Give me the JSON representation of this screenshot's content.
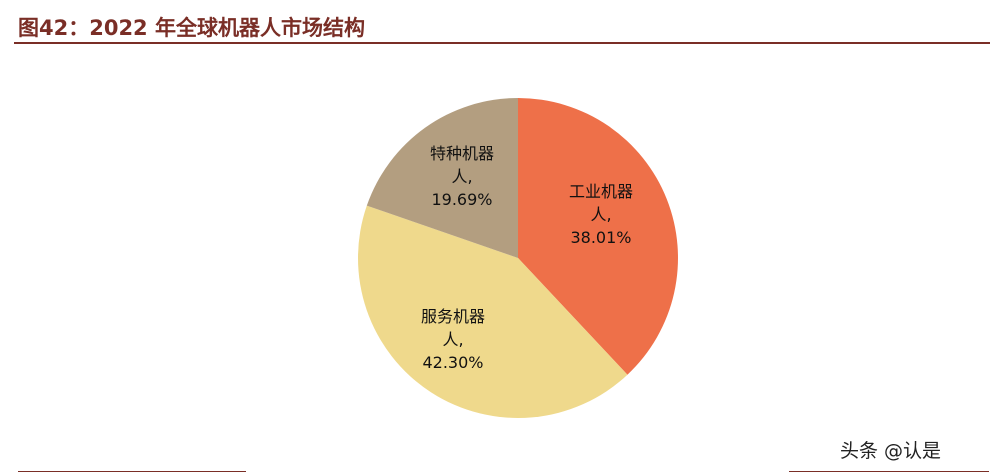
{
  "title": "图42：2022 年全球机器人市场结构",
  "watermark": "头条 @认是",
  "chart_data": {
    "type": "pie",
    "start": "12 o'clock",
    "direction": "clockwise",
    "slices": [
      {
        "label": "工业机器人",
        "label_lines": [
          "工业机器",
          "人,",
          "38.01%"
        ],
        "value": 38.01,
        "color": "#ee7049"
      },
      {
        "label": "服务机器人",
        "label_lines": [
          "服务机器",
          "人,",
          "42.30%"
        ],
        "value": 42.3,
        "color": "#efd98c"
      },
      {
        "label": "特种机器人",
        "label_lines": [
          "特种机器",
          "人,",
          "19.69%"
        ],
        "value": 19.69,
        "color": "#b39e80"
      }
    ]
  }
}
